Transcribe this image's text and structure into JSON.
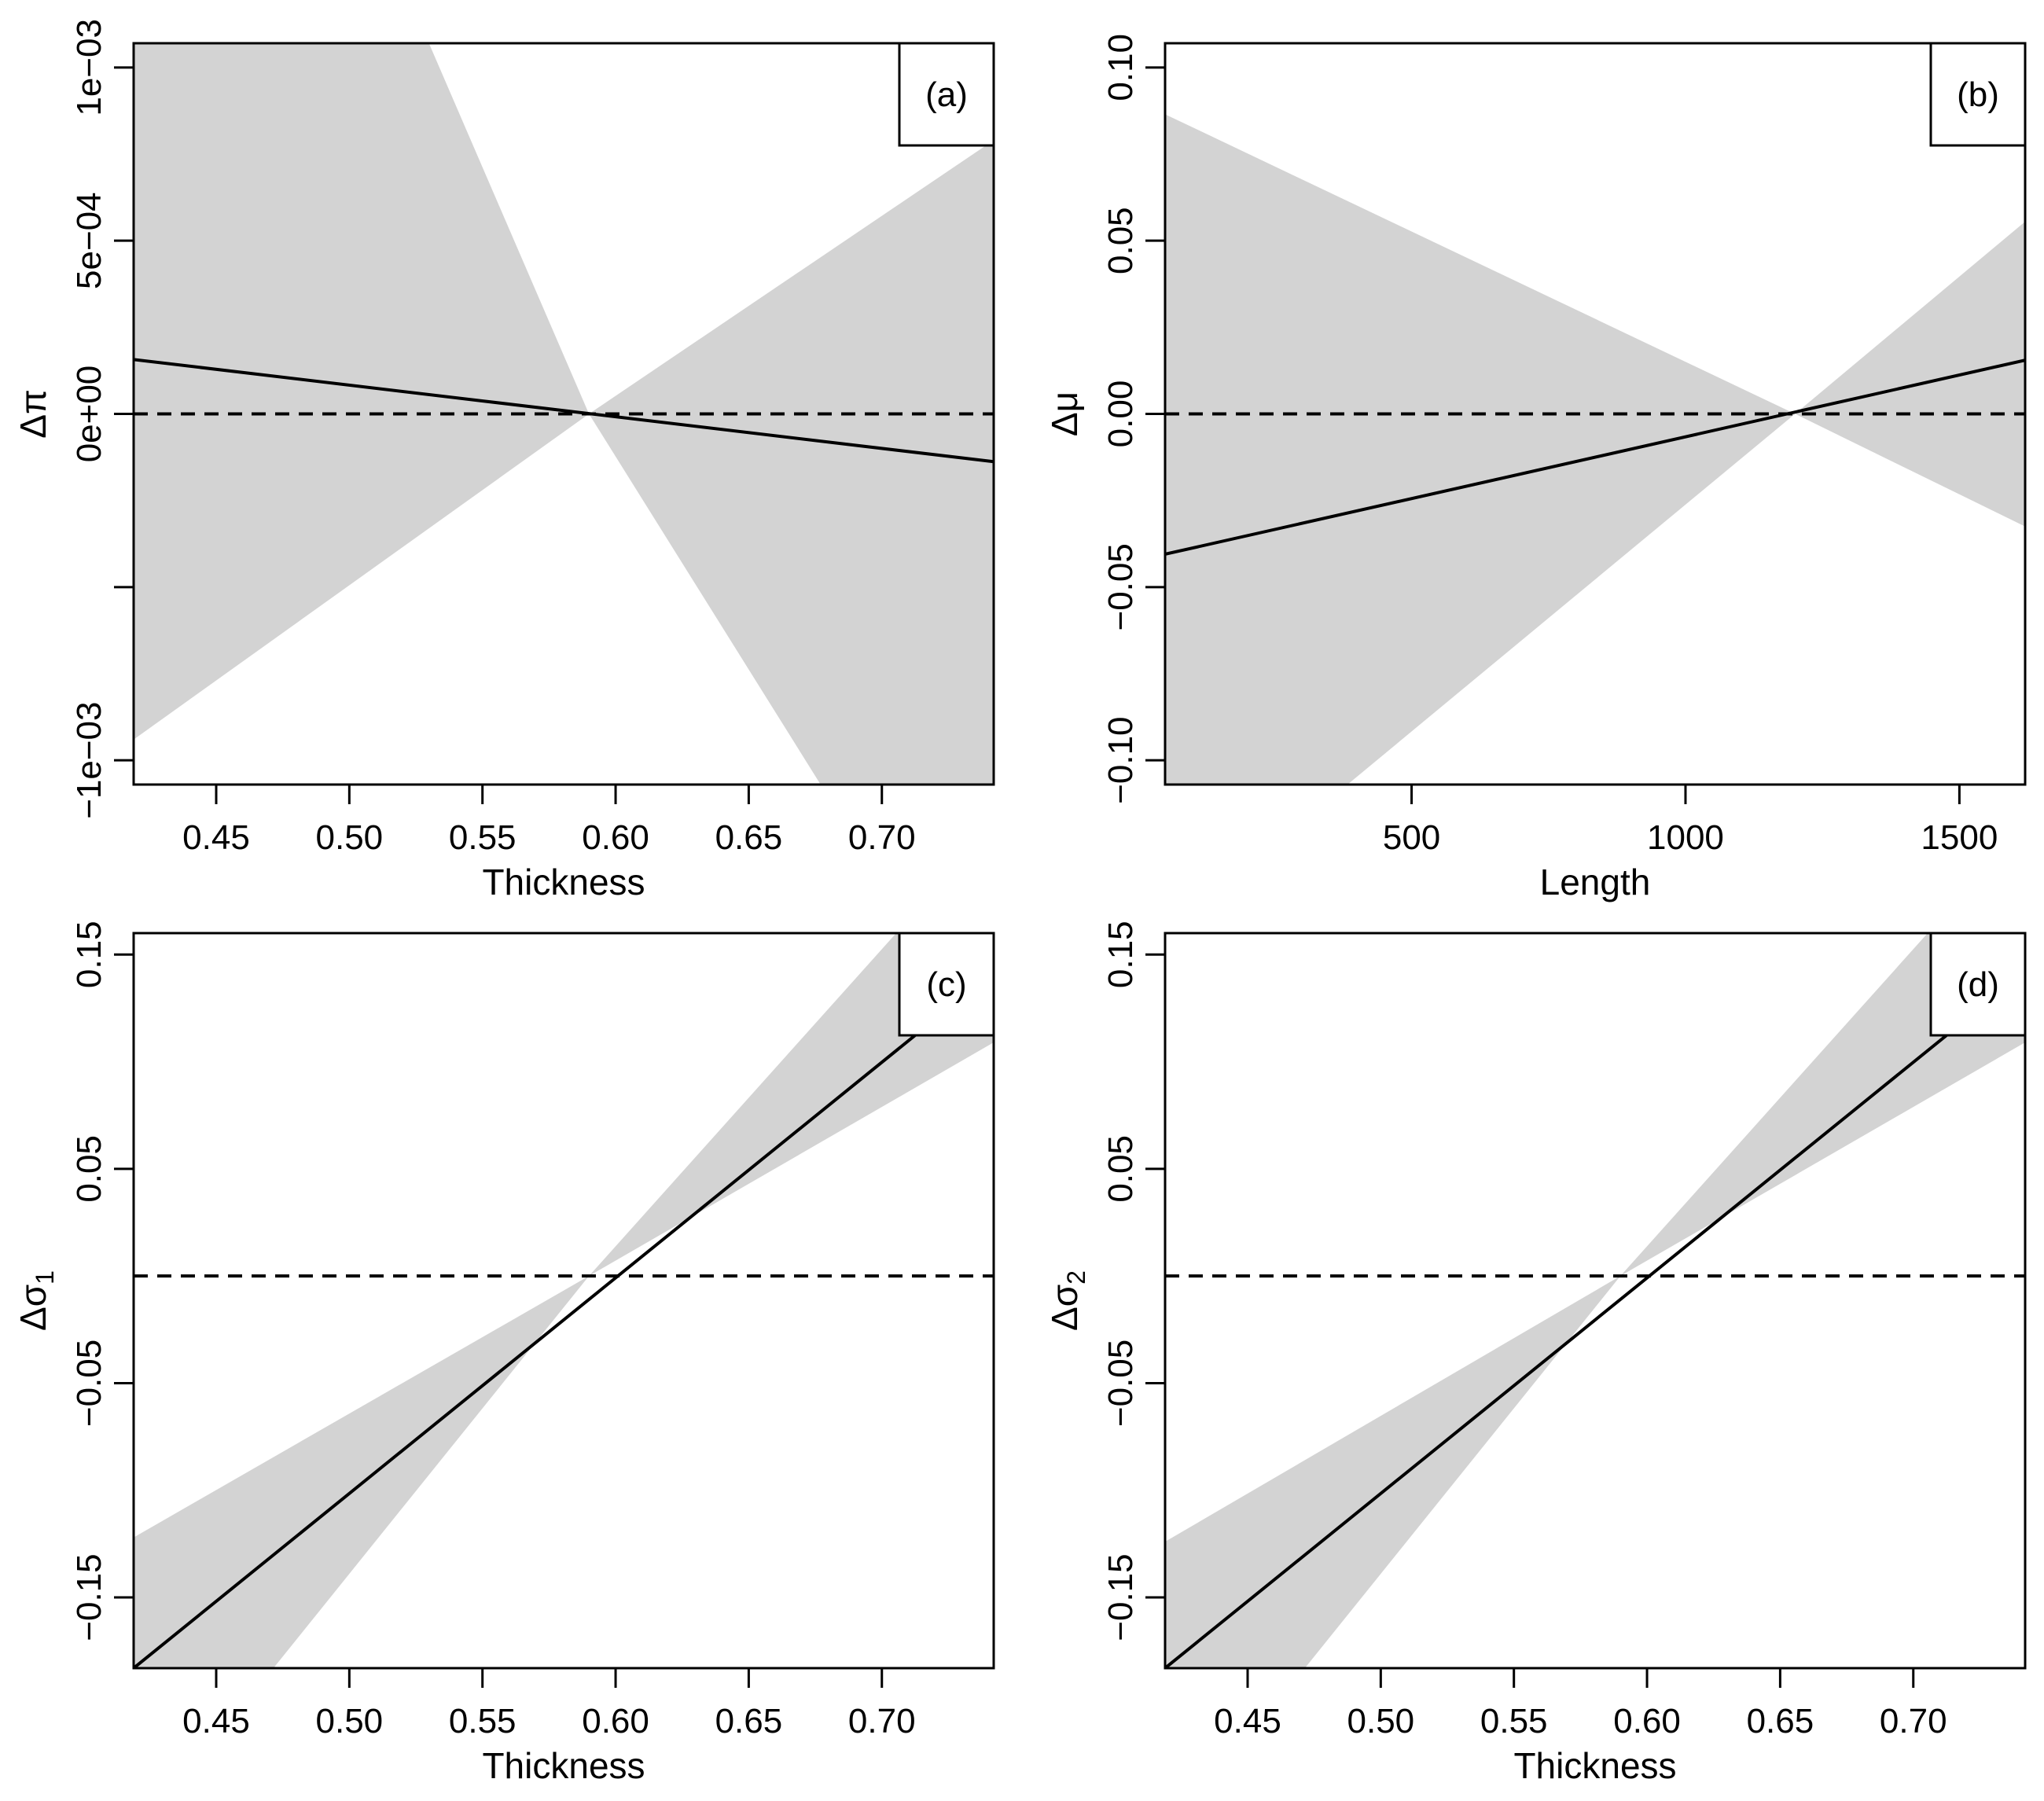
{
  "chart_data": [
    {
      "type": "line",
      "panel_label": "(a)",
      "xlabel": "Thickness",
      "ylabel_main": "Δπ",
      "ylabel_sub": "",
      "xlim": [
        0.419,
        0.742
      ],
      "ylim": [
        -0.00107,
        0.00107
      ],
      "x_ticks": [
        0.45,
        0.5,
        0.55,
        0.6,
        0.65,
        0.7
      ],
      "x_tick_labels": [
        "0.45",
        "0.50",
        "0.55",
        "0.60",
        "0.65",
        "0.70"
      ],
      "y_ticks": [
        -0.001,
        -0.0005,
        0,
        0.0005,
        0.001
      ],
      "y_tick_labels": [
        "−1e−03",
        "",
        "0e+00",
        "5e−04",
        "1e−03"
      ],
      "line": {
        "x": [
          0.419,
          0.742
        ],
        "y": [
          0.000157,
          -0.000138
        ]
      },
      "band_upper": {
        "x": [
          0.419,
          0.5299,
          0.59,
          0.742
        ],
        "y": [
          0.00107,
          0.00107,
          0.0,
          0.00079
        ]
      },
      "band_lower": {
        "x": [
          0.419,
          0.59,
          0.677,
          0.742
        ],
        "y": [
          -0.00094,
          0.0,
          -0.00107,
          -0.00107
        ]
      },
      "reference_line": 0
    },
    {
      "type": "line",
      "panel_label": "(b)",
      "xlabel": "Length",
      "ylabel_main": "Δμ",
      "ylabel_sub": "",
      "xlim": [
        50,
        1620
      ],
      "ylim": [
        -0.107,
        0.107
      ],
      "x_ticks": [
        500,
        1000,
        1500
      ],
      "x_tick_labels": [
        "500",
        "1000",
        "1500"
      ],
      "y_ticks": [
        -0.1,
        -0.05,
        0,
        0.05,
        0.1
      ],
      "y_tick_labels": [
        "−0.10",
        "−0.05",
        "0.00",
        "0.05",
        "0.10"
      ],
      "line": {
        "x": [
          50,
          1620
        ],
        "y": [
          -0.0405,
          0.0155
        ]
      },
      "band_upper": {
        "x": [
          50,
          1200,
          1620
        ],
        "y": [
          0.0865,
          0.0,
          0.0555
        ]
      },
      "band_lower": {
        "x": [
          50,
          383,
          1200,
          1620
        ],
        "y": [
          -0.107,
          -0.107,
          0.0,
          -0.0325
        ]
      },
      "reference_line": 0
    },
    {
      "type": "line",
      "panel_label": "(c)",
      "xlabel": "Thickness",
      "ylabel_main": "Δσ",
      "ylabel_sub": "1",
      "xlim": [
        0.419,
        0.742
      ],
      "ylim": [
        -0.183,
        0.16
      ],
      "x_ticks": [
        0.45,
        0.5,
        0.55,
        0.6,
        0.65,
        0.7
      ],
      "x_tick_labels": [
        "0.45",
        "0.50",
        "0.55",
        "0.60",
        "0.65",
        "0.70"
      ],
      "y_ticks": [
        -0.15,
        -0.05,
        0.05,
        0.15
      ],
      "y_tick_labels": [
        "−0.15",
        "−0.05",
        "0.05",
        "0.15"
      ],
      "line": {
        "x": [
          0.419,
          0.742
        ],
        "y": [
          -0.183,
          0.142
        ]
      },
      "band_upper": {
        "x": [
          0.419,
          0.59,
          0.7054,
          0.742
        ],
        "y": [
          -0.122,
          0.0,
          0.16,
          0.16
        ]
      },
      "band_lower": {
        "x": [
          0.419,
          0.4715,
          0.59,
          0.742
        ],
        "y": [
          -0.183,
          -0.183,
          0.0,
          0.109
        ]
      },
      "reference_line": 0
    },
    {
      "type": "line",
      "panel_label": "(d)",
      "xlabel": "Thickness",
      "ylabel_main": "Δσ",
      "ylabel_sub": "2",
      "xlim": [
        0.419,
        0.742
      ],
      "ylim": [
        -0.183,
        0.16
      ],
      "x_ticks": [
        0.45,
        0.5,
        0.55,
        0.6,
        0.65,
        0.7
      ],
      "x_tick_labels": [
        "0.45",
        "0.50",
        "0.55",
        "0.60",
        "0.65",
        "0.70"
      ],
      "y_ticks": [
        -0.15,
        -0.05,
        0.05,
        0.15
      ],
      "y_tick_labels": [
        "−0.15",
        "−0.05",
        "0.05",
        "0.15"
      ],
      "line": {
        "x": [
          0.419,
          0.742
        ],
        "y": [
          -0.183,
          0.142
        ]
      },
      "band_upper": {
        "x": [
          0.419,
          0.59,
          0.7054,
          0.742
        ],
        "y": [
          -0.124,
          0.0,
          0.16,
          0.16
        ]
      },
      "band_lower": {
        "x": [
          0.419,
          0.4715,
          0.59,
          0.742
        ],
        "y": [
          -0.183,
          -0.183,
          0.0,
          0.109
        ]
      },
      "reference_line": 0
    }
  ],
  "colors": {
    "band": "#d3d3d3",
    "line": "#000000",
    "axis": "#000000",
    "background": "#ffffff"
  }
}
